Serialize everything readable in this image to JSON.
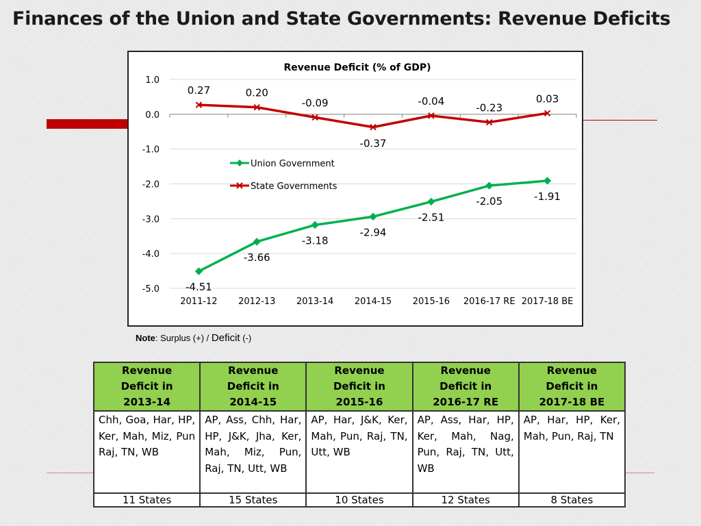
{
  "slide": {
    "title": "Finances of the Union and State Governments: Revenue Deficits"
  },
  "note": {
    "label": "Note",
    "surplus_text": ": Surplus (+) /",
    "deficit_text": "Deficit",
    "deficit_sign": "(-)"
  },
  "colors": {
    "union": "#00b050",
    "state": "#c00000",
    "header_bg": "#92d050",
    "accent": "#c00000"
  },
  "chart_data": {
    "type": "line",
    "title": "Revenue Deficit (% of GDP)",
    "categories": [
      "2011-12",
      "2012-13",
      "2013-14",
      "2014-15",
      "2015-16",
      "2016-17 RE",
      "2017-18 BE"
    ],
    "ylim": [
      -5.0,
      1.0
    ],
    "yticks": [
      "1.0",
      "0.0",
      "-1.0",
      "-2.0",
      "-3.0",
      "-4.0",
      "-5.0"
    ],
    "grid": true,
    "legend_position": "center-left",
    "series": [
      {
        "name": "Union Government",
        "color": "#00b050",
        "marker": "diamond",
        "values": [
          -4.51,
          -3.66,
          -3.18,
          -2.94,
          -2.51,
          -2.05,
          -1.91
        ],
        "labels": [
          "-4.51",
          "-3.66",
          "-3.18",
          "-2.94",
          "-2.51",
          "-2.05",
          "-1.91"
        ]
      },
      {
        "name": "State Governments",
        "color": "#c00000",
        "marker": "x",
        "values": [
          0.27,
          0.2,
          -0.09,
          -0.37,
          -0.04,
          -0.23,
          0.03
        ],
        "labels": [
          "0.27",
          "0.20",
          "-0.09",
          "-0.37",
          "-0.04",
          "-0.23",
          "0.03"
        ]
      }
    ]
  },
  "table": {
    "headers": [
      [
        "Revenue",
        "Deficit in",
        "2013-14"
      ],
      [
        "Revenue",
        "Deficit in",
        "2014-15"
      ],
      [
        "Revenue",
        "Deficit in",
        "2015-16"
      ],
      [
        "Revenue",
        "Deficit in",
        "2016-17 RE"
      ],
      [
        "Revenue",
        "Deficit in",
        "2017-18 BE"
      ]
    ],
    "states": [
      "Chh, Goa, Har, HP, Ker, Mah, Miz, Pun Raj, TN, WB",
      "AP, Ass, Chh, Har, HP, J&K, Jha, Ker, Mah, Miz, Pun, Raj, TN, Utt, WB",
      "AP, Har, J&K, Ker, Mah, Pun, Raj, TN, Utt, WB",
      "AP, Ass, Har, HP, Ker, Mah, Nag, Pun, Raj, TN, Utt, WB",
      "AP, Har, HP, Ker, Mah, Pun, Raj, TN"
    ],
    "counts": [
      "11 States",
      "15 States",
      "10 States",
      "12 States",
      "8 States"
    ]
  }
}
